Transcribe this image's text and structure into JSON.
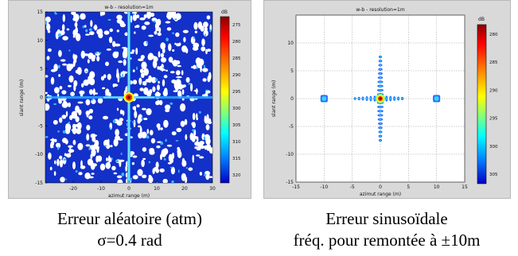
{
  "figures": [
    {
      "title": "w-b - resolution=1m",
      "xlabel": "azimut range (m)",
      "ylabel": "slant range (m)",
      "colorbar_unit": "dB",
      "caption_line1": "Erreur aléatoire (atm)",
      "caption_line2": "σ=0.4 rad"
    },
    {
      "title": "w-b - resolution=1m",
      "xlabel": "azimut range (m)",
      "ylabel": "slant range (m)",
      "colorbar_unit": "dB",
      "caption_line1": "Erreur sinusoïdale",
      "caption_line2": "fréq. pour remontée à ±10m"
    }
  ],
  "chart_data": [
    {
      "type": "heatmap",
      "title": "w-b - resolution=1m",
      "xlabel": "azimut range (m)",
      "ylabel": "slant range (m)",
      "xlim": [
        -30,
        30
      ],
      "ylim": [
        -15,
        15
      ],
      "x_ticks": [
        -20,
        -10,
        0,
        10,
        20,
        30
      ],
      "y_ticks": [
        15,
        10,
        5,
        0,
        -5,
        -10,
        -15
      ],
      "colorbar": {
        "unit": "dB",
        "ticks": [
          275,
          280,
          285,
          290,
          295,
          300,
          305,
          310,
          315,
          320
        ],
        "reversed": true
      },
      "peak": {
        "x": 0,
        "y": 0
      },
      "grid": false
    },
    {
      "type": "heatmap",
      "title": "w-b - resolution=1m",
      "xlabel": "azimut range (m)",
      "ylabel": "slant range (m)",
      "xlim": [
        -15,
        15
      ],
      "ylim": [
        -15,
        15
      ],
      "x_ticks": [
        -15,
        -10,
        -5,
        0,
        5,
        10,
        15
      ],
      "y_ticks": [
        10,
        5,
        0,
        -5,
        -10,
        -15
      ],
      "colorbar": {
        "unit": "dB",
        "ticks": [
          280,
          285,
          290,
          295,
          300,
          305
        ],
        "reversed": true
      },
      "peak": {
        "x": 0,
        "y": 0
      },
      "ghost_echoes": [
        {
          "x": -10,
          "y": 0
        },
        {
          "x": 10,
          "y": 0
        }
      ],
      "grid": true
    }
  ],
  "colors": {
    "panel_bg": "#d9d9d9",
    "plot_bg": "#ffffff",
    "noise_blue": "#1330c8",
    "colormap": [
      "#8b0000",
      "#ff0000",
      "#ff8c00",
      "#ffff00",
      "#7fff7f",
      "#00ffff",
      "#0080ff",
      "#0000c8"
    ]
  }
}
